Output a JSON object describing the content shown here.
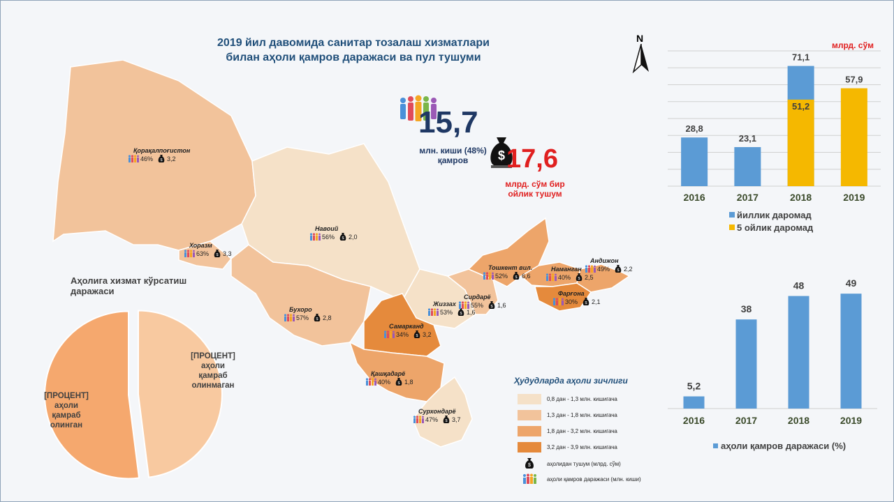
{
  "title_line1": "2019 йил давомида санитар тозалаш хизматлари",
  "title_line2": "билан аҳоли қамров даражаси ва пул тушуми",
  "north_label": "N",
  "coverage": {
    "number": "15,7",
    "caption_line1": "млн. киши (48%)",
    "caption_line2": "қамров"
  },
  "income": {
    "number": "17,6",
    "caption_line1": "млрд. сўм бир",
    "caption_line2": "ойлик тушум"
  },
  "regions": [
    {
      "name": "Қорақалпоғистон",
      "pct": "46%",
      "val": "3,2"
    },
    {
      "name": "Хоразм",
      "pct": "63%",
      "val": "3,3"
    },
    {
      "name": "Навоий",
      "pct": "56%",
      "val": "2,0"
    },
    {
      "name": "Бухоро",
      "pct": "57%",
      "val": "2,8"
    },
    {
      "name": "Жиззах",
      "pct": "53%",
      "val": "1,6"
    },
    {
      "name": "Самарканд",
      "pct": "34%",
      "val": "3,2"
    },
    {
      "name": "Қашқадарё",
      "pct": "40%",
      "val": "1,8"
    },
    {
      "name": "Сурхондарё",
      "pct": "47%",
      "val": "3,7"
    },
    {
      "name": "Сирдарё",
      "pct": "55%",
      "val": "1,6"
    },
    {
      "name": "Тошкент вил.",
      "pct": "52%",
      "val": "6,6"
    },
    {
      "name": "Наманган",
      "pct": "40%",
      "val": "2,5"
    },
    {
      "name": "Андижон",
      "pct": "49%",
      "val": "2,2"
    },
    {
      "name": "Фарғона",
      "pct": "30%",
      "val": "2,1"
    }
  ],
  "density_legend": {
    "title": "Ҳудудларда аҳоли зичлиги",
    "items": [
      {
        "label": "0,8 дан - 1,3 млн. кишигача",
        "color": "#f5e1c8"
      },
      {
        "label": "1,3 дан - 1,8 млн. кишигача",
        "color": "#f2c39b"
      },
      {
        "label": "1,8 дан - 3,2 млн. кишигача",
        "color": "#eda56a"
      },
      {
        "label": "3,2 дан - 3,9 млн. кишигача",
        "color": "#e58a3c"
      }
    ],
    "income_icon_label": "аҳолидан тушум (млрд. сўм)",
    "coverage_icon_label": "аҳоли қамров даражаси (млн. киши)"
  },
  "chart_data": [
    {
      "type": "pie",
      "title": "Аҳолига  хизмат кўрсатиш даражаси",
      "slices": [
        {
          "label": "[ПРОЦЕНТ] аҳоли қамраб олинган",
          "value": 48,
          "color": "#f8c9a0"
        },
        {
          "label": "[ПРОЦЕНТ] аҳоли қамраб олинмаган",
          "value": 52,
          "color": "#f5a86e"
        }
      ]
    },
    {
      "type": "bar",
      "unit_label": "млрд. сўм",
      "categories": [
        "2016",
        "2017",
        "2018",
        "2019"
      ],
      "series": [
        {
          "name": "йиллик даромад",
          "values": [
            28.8,
            23.1,
            71.1,
            null
          ],
          "value_labels": [
            "28,8",
            "23,1",
            "71,1",
            ""
          ],
          "color": "#5b9bd5"
        },
        {
          "name": "5 ойлик даромад",
          "values": [
            null,
            null,
            51.2,
            57.9
          ],
          "value_labels": [
            "",
            "",
            "51,2",
            "57,9"
          ],
          "color": "#f5b800"
        }
      ],
      "ylim": [
        0,
        80
      ],
      "grid": true,
      "legend_position": "bottom"
    },
    {
      "type": "bar",
      "categories": [
        "2016",
        "2017",
        "2018",
        "2019"
      ],
      "series": [
        {
          "name": "аҳоли қамров даражаси (%)",
          "values": [
            5.2,
            38,
            48,
            49
          ],
          "value_labels": [
            "5,2",
            "38",
            "48",
            "49"
          ],
          "color": "#5b9bd5"
        }
      ],
      "ylim": [
        0,
        55
      ],
      "grid": false,
      "legend_position": "bottom"
    }
  ]
}
